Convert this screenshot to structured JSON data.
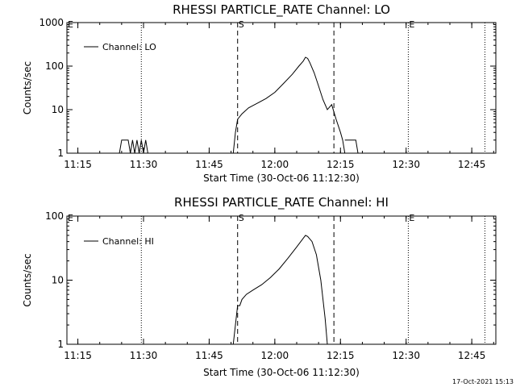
{
  "footer": {
    "timestamp": "17-Oct-2021 15:13"
  },
  "chart_data": [
    {
      "type": "line",
      "title": "RHESSI PARTICLE_RATE Channel: LO",
      "xlabel": "Start Time (30-Oct-06 11:12:30)",
      "ylabel": "Counts/sec",
      "yscale": "log",
      "ylim": [
        1,
        1000
      ],
      "yticks": [
        "1",
        "10",
        "100",
        "1000"
      ],
      "xlim": [
        "11:12:30",
        "12:50:30"
      ],
      "xticks": [
        "11:15",
        "11:30",
        "11:45",
        "12:00",
        "12:15",
        "12:30",
        "12:45"
      ],
      "grid": false,
      "legend": {
        "position": "top-left",
        "label": "Channel: LO"
      },
      "markers": [
        {
          "time": "11:29:30",
          "style": "dotted",
          "label": ""
        },
        {
          "time": "11:51:30",
          "style": "dashed",
          "label": "S"
        },
        {
          "time": "12:13:30",
          "style": "dashed",
          "label": ""
        },
        {
          "time": "12:30:30",
          "style": "dotted",
          "label": "E"
        },
        {
          "time": "12:48:00",
          "style": "dotted",
          "label": ""
        }
      ],
      "edge_labels": [
        "E"
      ],
      "series": [
        {
          "name": "Channel: LO",
          "segments": [
            [
              [
                "11:24:30",
                1
              ],
              [
                "11:25:00",
                2
              ],
              [
                "11:26:30",
                2
              ],
              [
                "11:27:00",
                1
              ],
              [
                "11:27:30",
                2
              ],
              [
                "11:28:00",
                1
              ],
              [
                "11:28:30",
                2
              ],
              [
                "11:29:00",
                1
              ],
              [
                "11:29:30",
                2
              ],
              [
                "11:30:00",
                1
              ],
              [
                "11:30:30",
                2
              ],
              [
                "11:31:00",
                1
              ]
            ],
            [
              [
                "11:50:30",
                1
              ],
              [
                "11:51:00",
                3
              ],
              [
                "11:51:30",
                6
              ],
              [
                "11:52:30",
                8
              ],
              [
                "11:54:00",
                11
              ],
              [
                "11:56:00",
                14
              ],
              [
                "11:58:00",
                18
              ],
              [
                "12:00:00",
                25
              ],
              [
                "12:02:00",
                40
              ],
              [
                "12:04:00",
                65
              ],
              [
                "12:05:30",
                100
              ],
              [
                "12:06:30",
                130
              ],
              [
                "12:07:00",
                160
              ],
              [
                "12:07:30",
                150
              ],
              [
                "12:08:00",
                120
              ],
              [
                "12:09:00",
                70
              ],
              [
                "12:10:00",
                35
              ],
              [
                "12:11:00",
                17
              ],
              [
                "12:12:00",
                10
              ],
              [
                "12:13:00",
                13
              ],
              [
                "12:14:00",
                6
              ],
              [
                "12:15:00",
                3
              ],
              [
                "12:15:30",
                2
              ],
              [
                "12:16:00",
                1
              ]
            ],
            [
              [
                "12:16:00",
                2
              ],
              [
                "12:18:30",
                2
              ],
              [
                "12:19:00",
                1
              ]
            ]
          ]
        }
      ]
    },
    {
      "type": "line",
      "title": "RHESSI PARTICLE_RATE Channel: HI",
      "xlabel": "Start Time (30-Oct-06 11:12:30)",
      "ylabel": "Counts/sec",
      "yscale": "log",
      "ylim": [
        1,
        100
      ],
      "yticks": [
        "1",
        "10",
        "100"
      ],
      "xlim": [
        "11:12:30",
        "12:50:30"
      ],
      "xticks": [
        "11:15",
        "11:30",
        "11:45",
        "12:00",
        "12:15",
        "12:30",
        "12:45"
      ],
      "grid": false,
      "legend": {
        "position": "top-left",
        "label": "Channel: HI"
      },
      "markers": [
        {
          "time": "11:29:30",
          "style": "dotted",
          "label": ""
        },
        {
          "time": "11:51:30",
          "style": "dashed",
          "label": "S"
        },
        {
          "time": "12:13:30",
          "style": "dashed",
          "label": ""
        },
        {
          "time": "12:30:30",
          "style": "dotted",
          "label": "E"
        },
        {
          "time": "12:48:00",
          "style": "dotted",
          "label": ""
        }
      ],
      "edge_labels": [
        "E"
      ],
      "series": [
        {
          "name": "Channel: HI",
          "segments": [
            [
              [
                "11:50:30",
                1
              ],
              [
                "11:51:00",
                2
              ],
              [
                "11:51:30",
                4
              ],
              [
                "11:52:00",
                4
              ],
              [
                "11:52:30",
                5
              ],
              [
                "11:53:30",
                6
              ],
              [
                "11:55:00",
                7
              ],
              [
                "11:57:00",
                8.5
              ],
              [
                "11:59:00",
                11
              ],
              [
                "12:01:00",
                15
              ],
              [
                "12:03:00",
                22
              ],
              [
                "12:05:00",
                33
              ],
              [
                "12:06:30",
                45
              ],
              [
                "12:07:00",
                50
              ],
              [
                "12:07:30",
                48
              ],
              [
                "12:08:30",
                40
              ],
              [
                "12:09:30",
                25
              ],
              [
                "12:10:30",
                10
              ],
              [
                "12:11:00",
                5
              ],
              [
                "12:11:30",
                2.5
              ],
              [
                "12:12:00",
                1
              ]
            ]
          ]
        }
      ]
    }
  ]
}
